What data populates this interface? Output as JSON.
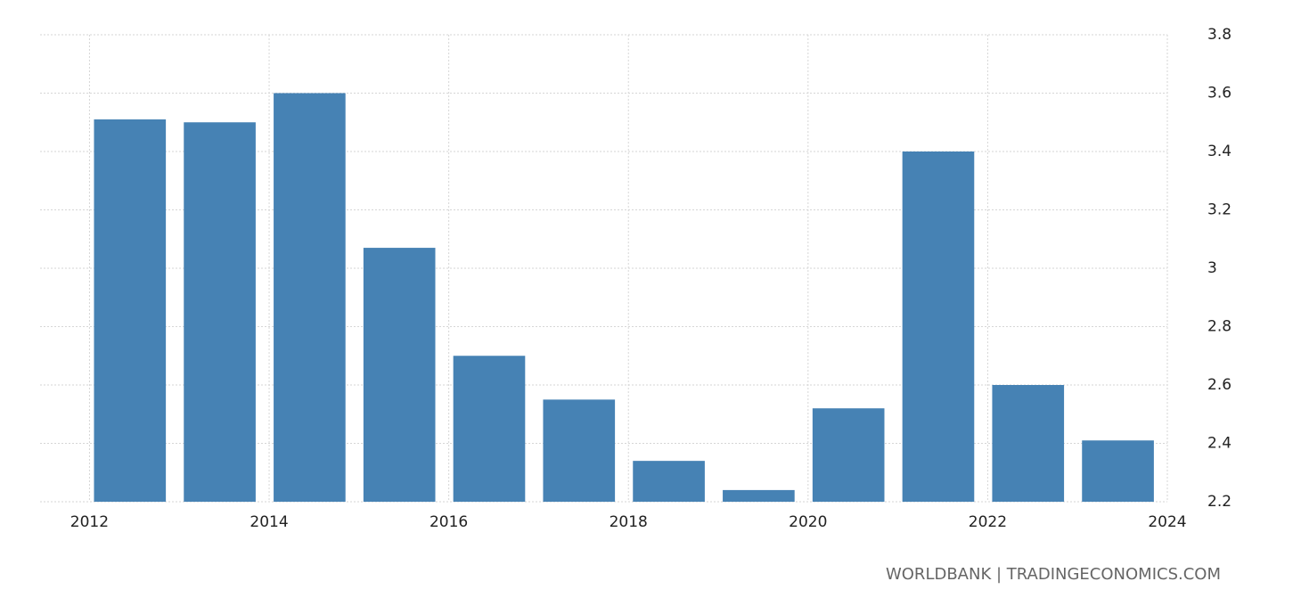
{
  "chart_data": {
    "type": "bar",
    "x": [
      2012,
      2013,
      2014,
      2015,
      2016,
      2017,
      2018,
      2019,
      2020,
      2021,
      2022,
      2023
    ],
    "values": [
      3.51,
      3.5,
      3.6,
      3.07,
      2.7,
      2.55,
      2.34,
      2.24,
      2.52,
      3.4,
      2.6,
      2.41
    ],
    "color": "#4682b4",
    "xlim": [
      2011.45,
      2024
    ],
    "xticks": [
      2012,
      2014,
      2016,
      2018,
      2020,
      2022,
      2024
    ],
    "ylim": [
      2.2,
      3.8
    ],
    "yticks": [
      2.2,
      2.4,
      2.6,
      2.8,
      3,
      3.2,
      3.4,
      3.6,
      3.8
    ],
    "grid": true,
    "source": "WORLDBANK | TRADINGECONOMICS.COM"
  }
}
